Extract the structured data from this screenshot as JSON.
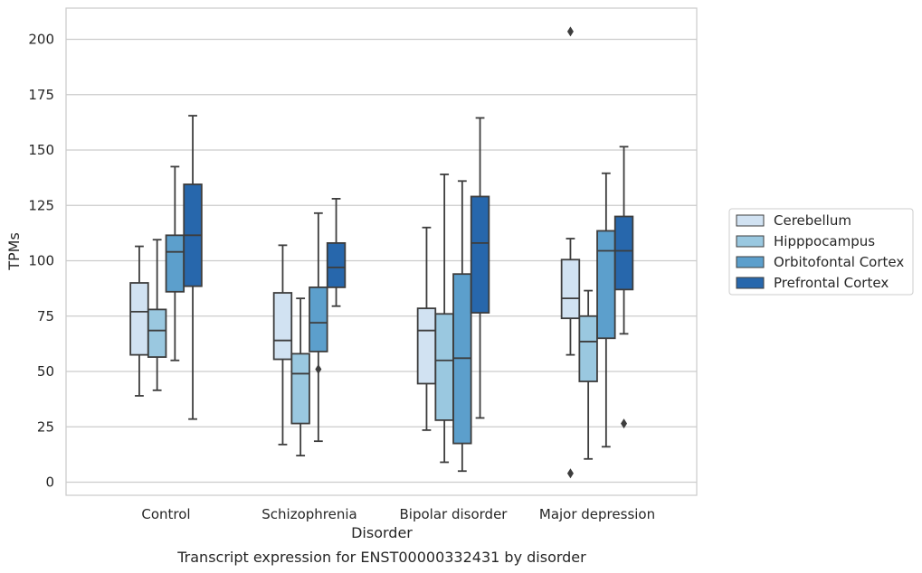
{
  "chart_data": {
    "type": "boxplot",
    "caption": "Transcript expression for ENST00000332431 by disorder",
    "xlabel": "Disorder",
    "ylabel": "TPMs",
    "ylim": [
      -6,
      214
    ],
    "yticks": [
      0,
      25,
      50,
      75,
      100,
      125,
      150,
      175,
      200
    ],
    "grid": "horizontal",
    "legend_position": "right",
    "categories": [
      "Control",
      "Schizophrenia",
      "Bipolar disorder",
      "Major depression"
    ],
    "series": [
      {
        "name": "Cerebellum",
        "color": "#d1e2f2",
        "boxes": [
          {
            "whisker_low": 39,
            "q1": 57.5,
            "median": 77,
            "q3": 90,
            "whisker_high": 106.5,
            "outliers": []
          },
          {
            "whisker_low": 17,
            "q1": 55.5,
            "median": 64,
            "q3": 85.5,
            "whisker_high": 107,
            "outliers": []
          },
          {
            "whisker_low": 23.5,
            "q1": 44.5,
            "median": 68.5,
            "q3": 78.5,
            "whisker_high": 115,
            "outliers": []
          },
          {
            "whisker_low": 57.5,
            "q1": 74,
            "median": 83,
            "q3": 100.5,
            "whisker_high": 110,
            "outliers": [
              4,
              203.5
            ]
          }
        ]
      },
      {
        "name": "Hipppocampus",
        "color": "#9ac8e0",
        "boxes": [
          {
            "whisker_low": 41.5,
            "q1": 56.5,
            "median": 68.5,
            "q3": 78,
            "whisker_high": 109.5,
            "outliers": []
          },
          {
            "whisker_low": 12,
            "q1": 26.5,
            "median": 49,
            "q3": 58,
            "whisker_high": 83,
            "outliers": []
          },
          {
            "whisker_low": 9,
            "q1": 28,
            "median": 55,
            "q3": 76,
            "whisker_high": 139,
            "outliers": []
          },
          {
            "whisker_low": 10.5,
            "q1": 45.5,
            "median": 63.5,
            "q3": 75,
            "whisker_high": 86.5,
            "outliers": []
          }
        ]
      },
      {
        "name": "Orbitofontal Cortex",
        "color": "#5c9fcc",
        "boxes": [
          {
            "whisker_low": 55,
            "q1": 86,
            "median": 104,
            "q3": 111.5,
            "whisker_high": 142.5,
            "outliers": []
          },
          {
            "whisker_low": 18.5,
            "q1": 59,
            "median": 72,
            "q3": 88,
            "whisker_high": 121.5,
            "outliers": [
              51
            ]
          },
          {
            "whisker_low": 5,
            "q1": 17.5,
            "median": 56,
            "q3": 94,
            "whisker_high": 136,
            "outliers": []
          },
          {
            "whisker_low": 16,
            "q1": 65,
            "median": 104.5,
            "q3": 113.5,
            "whisker_high": 139.5,
            "outliers": []
          }
        ]
      },
      {
        "name": "Prefrontal Cortex",
        "color": "#2767ac",
        "boxes": [
          {
            "whisker_low": 28.5,
            "q1": 88.5,
            "median": 111.5,
            "q3": 134.5,
            "whisker_high": 165.5,
            "outliers": []
          },
          {
            "whisker_low": 79.5,
            "q1": 88,
            "median": 97,
            "q3": 108,
            "whisker_high": 128,
            "outliers": []
          },
          {
            "whisker_low": 29,
            "q1": 76.5,
            "median": 108,
            "q3": 129,
            "whisker_high": 164.5,
            "outliers": []
          },
          {
            "whisker_low": 67,
            "q1": 87,
            "median": 104.5,
            "q3": 120,
            "whisker_high": 151.5,
            "outliers": [
              26.5
            ]
          }
        ]
      }
    ]
  }
}
